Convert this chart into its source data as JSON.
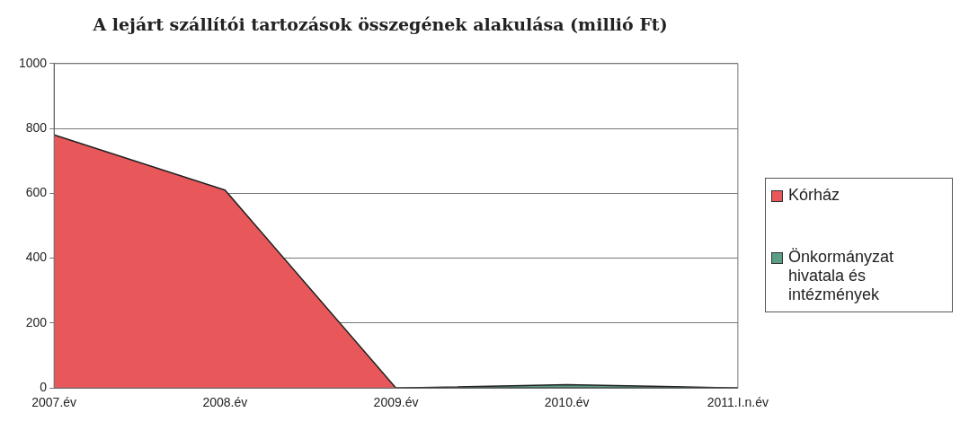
{
  "chart_data": {
    "type": "area",
    "title": "A lejárt szállítói tartozások összegének alakulása (millió Ft)",
    "categories": [
      "2007.év",
      "2008.év",
      "2009.év",
      "2010.év",
      "2011.I.n.év"
    ],
    "series": [
      {
        "name": "Kórház",
        "color": "#e8585a",
        "values": [
          780,
          610,
          0,
          0,
          0
        ]
      },
      {
        "name": "Önkormányzat hivatala és intézmények",
        "color": "#5a9e84",
        "values": [
          null,
          null,
          0,
          10,
          0
        ]
      }
    ],
    "ylim": [
      0,
      1000
    ],
    "yticks": [
      0,
      200,
      400,
      600,
      800,
      1000
    ],
    "grid": "y",
    "legend": "right"
  }
}
